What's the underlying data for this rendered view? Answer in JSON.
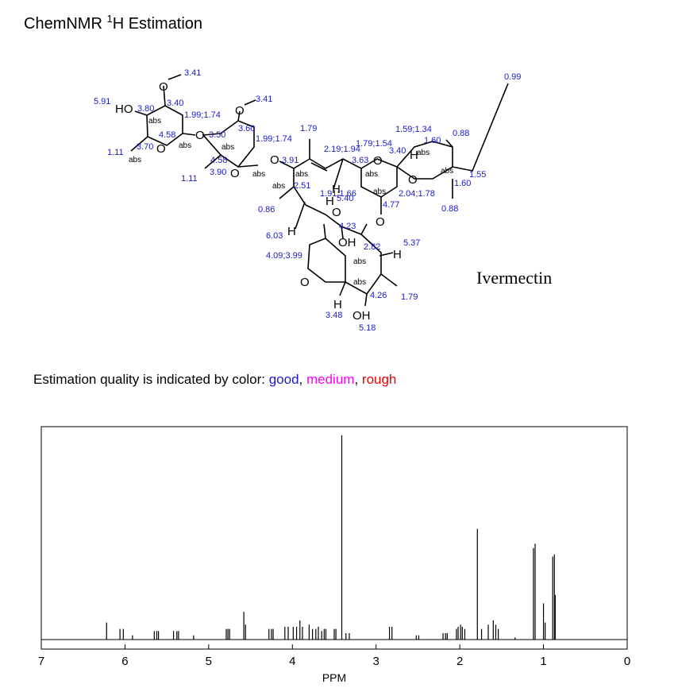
{
  "header": {
    "title_parts": [
      "ChemNMR ",
      "1",
      "H Estimation"
    ]
  },
  "structure": {
    "name": "Ivermectin",
    "shifts": [
      "3.41",
      "5.91",
      "3.80",
      "3.40",
      "3.41",
      "1.99;1.74",
      "4.58",
      "3.50",
      "3.60",
      "1.11",
      "3.70",
      "1.99;1.74",
      "1.79",
      "4.58",
      "3.91",
      "1.11",
      "3.90",
      "2.19;1.94",
      "1.79;1.54",
      "1.59;1.34",
      "0.88",
      "3.40",
      "1.60",
      "0.99",
      "3.63",
      "2.51",
      "1.91;1.66",
      "5.40",
      "2.04;1.78",
      "1.55",
      "1.60",
      "0.86",
      "4.77",
      "0.88",
      "6.03",
      "4.23",
      "2.82",
      "5.37",
      "4.09;3.99",
      "4.26",
      "1.79",
      "3.48",
      "5.18"
    ],
    "atoms": [
      "HO",
      "O",
      "O",
      "O",
      "O",
      "O",
      "O",
      "O",
      "O",
      "H",
      "H",
      "H",
      "H",
      "O",
      "O",
      "OH",
      "H",
      "O",
      "H",
      "OH"
    ],
    "stereo": "abs"
  },
  "quality": {
    "parts": [
      "Estimation quality is indicated by color: ",
      "good",
      ", ",
      "medium",
      ", ",
      "rough"
    ]
  },
  "chart_data": {
    "type": "spectrum",
    "xlabel": "PPM",
    "xlim": [
      7,
      0
    ],
    "xticks": [
      7,
      6,
      5,
      4,
      3,
      2,
      1,
      0
    ],
    "ylim": [
      0,
      100
    ],
    "color": "#000000",
    "x": [
      6.22,
      6.06,
      6.02,
      5.91,
      5.65,
      5.62,
      5.6,
      5.42,
      5.38,
      5.36,
      5.18,
      4.79,
      4.77,
      4.75,
      4.58,
      4.56,
      4.28,
      4.25,
      4.23,
      4.09,
      4.05,
      3.99,
      3.95,
      3.91,
      3.88,
      3.8,
      3.76,
      3.72,
      3.69,
      3.65,
      3.62,
      3.6,
      3.5,
      3.48,
      3.41,
      3.36,
      3.32,
      2.84,
      2.81,
      2.52,
      2.49,
      2.2,
      2.17,
      2.15,
      2.04,
      2.02,
      1.99,
      1.97,
      1.94,
      1.79,
      1.74,
      1.66,
      1.6,
      1.57,
      1.54,
      1.34,
      1.12,
      1.1,
      1.0,
      0.98,
      0.89,
      0.87,
      0.86
    ],
    "values": [
      8,
      5,
      5,
      2,
      4,
      4,
      4,
      4,
      4,
      4,
      2,
      5,
      5,
      5,
      13,
      7,
      5,
      5,
      5,
      6,
      6,
      6,
      6,
      9,
      6,
      7,
      5,
      5,
      6,
      4,
      5,
      5,
      5,
      5,
      96,
      3,
      3,
      6,
      6,
      2,
      2,
      3,
      3,
      3,
      5,
      6,
      7,
      6,
      5,
      52,
      5,
      7,
      9,
      7,
      5,
      1,
      43,
      45,
      17,
      8,
      39,
      40,
      21
    ]
  }
}
